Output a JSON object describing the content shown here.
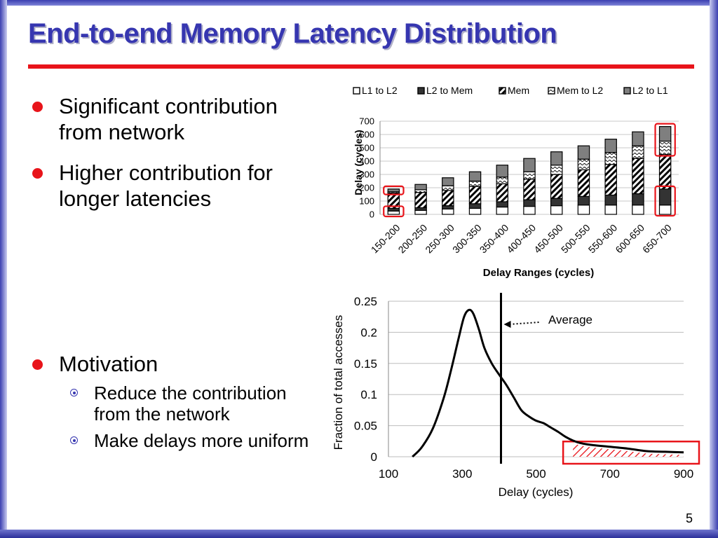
{
  "slide": {
    "title": "End-to-end Memory Latency Distribution",
    "number": "5",
    "bullets": [
      {
        "text": "Significant contribution from network",
        "lines": [
          "Significant contribution",
          "from network"
        ]
      },
      {
        "text": "Higher contribution for longer latencies",
        "lines": [
          "Higher contribution for",
          "longer latencies"
        ]
      },
      {
        "text": "Motivation",
        "lines": [
          "Motivation"
        ]
      }
    ],
    "sub_bullets": [
      {
        "lines": [
          "Reduce the contribution",
          "from the network"
        ]
      },
      {
        "lines": [
          "Make delays more uniform"
        ]
      }
    ],
    "colors": {
      "title": "#3636b0",
      "accent": "#e8141a",
      "frame": "#3b3fb0"
    }
  },
  "chart_data": [
    {
      "type": "bar",
      "stacked": true,
      "title": "",
      "xlabel": "Delay Ranges (cycles)",
      "ylabel": "Delay (cycles)",
      "ylim": [
        0,
        700
      ],
      "yticks": [
        0,
        100,
        200,
        300,
        400,
        500,
        600,
        700
      ],
      "categories": [
        "150-200",
        "200-250",
        "250-300",
        "300-350",
        "350-400",
        "400-450",
        "450-500",
        "500-550",
        "550-600",
        "600-650",
        "650-700"
      ],
      "legend_position": "top",
      "series": [
        {
          "name": "L1 to L2",
          "pattern": "white",
          "values": [
            25,
            30,
            40,
            45,
            55,
            60,
            65,
            70,
            70,
            70,
            70
          ]
        },
        {
          "name": "L2 to Mem",
          "pattern": "dark",
          "values": [
            20,
            20,
            25,
            35,
            40,
            50,
            55,
            65,
            75,
            85,
            120
          ]
        },
        {
          "name": "Mem",
          "pattern": "diagonal",
          "values": [
            115,
            115,
            115,
            130,
            135,
            155,
            180,
            200,
            230,
            265,
            260
          ]
        },
        {
          "name": "Mem to L2",
          "pattern": "wave",
          "values": [
            10,
            20,
            35,
            40,
            50,
            55,
            70,
            80,
            90,
            95,
            100
          ]
        },
        {
          "name": "L2 to L1",
          "pattern": "gray",
          "values": [
            20,
            40,
            60,
            70,
            90,
            100,
            100,
            100,
            100,
            105,
            110
          ]
        }
      ],
      "highlighted_categories": [
        "150-200",
        "650-700"
      ]
    },
    {
      "type": "line",
      "title": "",
      "xlabel": "Delay (cycles)",
      "ylabel": "Fraction of total accesses",
      "xlim": [
        100,
        900
      ],
      "ylim": [
        0,
        0.25
      ],
      "xticks": [
        100,
        300,
        500,
        700,
        900
      ],
      "ytick_labels": [
        "0",
        "0.05",
        "0.1",
        "0.15",
        "0.2",
        "0.25"
      ],
      "yticks": [
        0,
        0.05,
        0.1,
        0.15,
        0.2,
        0.25
      ],
      "series": [
        {
          "name": "distribution",
          "x": [
            165,
            190,
            220,
            250,
            270,
            290,
            305,
            318,
            330,
            345,
            360,
            380,
            400,
            420,
            440,
            460,
            480,
            500,
            520,
            540,
            560,
            580,
            600,
            620,
            650,
            700,
            750,
            800,
            850,
            900
          ],
          "y": [
            0,
            0.015,
            0.045,
            0.095,
            0.14,
            0.19,
            0.225,
            0.236,
            0.23,
            0.205,
            0.175,
            0.15,
            0.132,
            0.115,
            0.095,
            0.075,
            0.065,
            0.058,
            0.054,
            0.047,
            0.04,
            0.032,
            0.026,
            0.022,
            0.019,
            0.016,
            0.013,
            0.009,
            0.008,
            0.007
          ]
        }
      ],
      "average_line_x": 405,
      "annotation": "Average",
      "shaded_region": [
        600,
        900
      ]
    }
  ]
}
